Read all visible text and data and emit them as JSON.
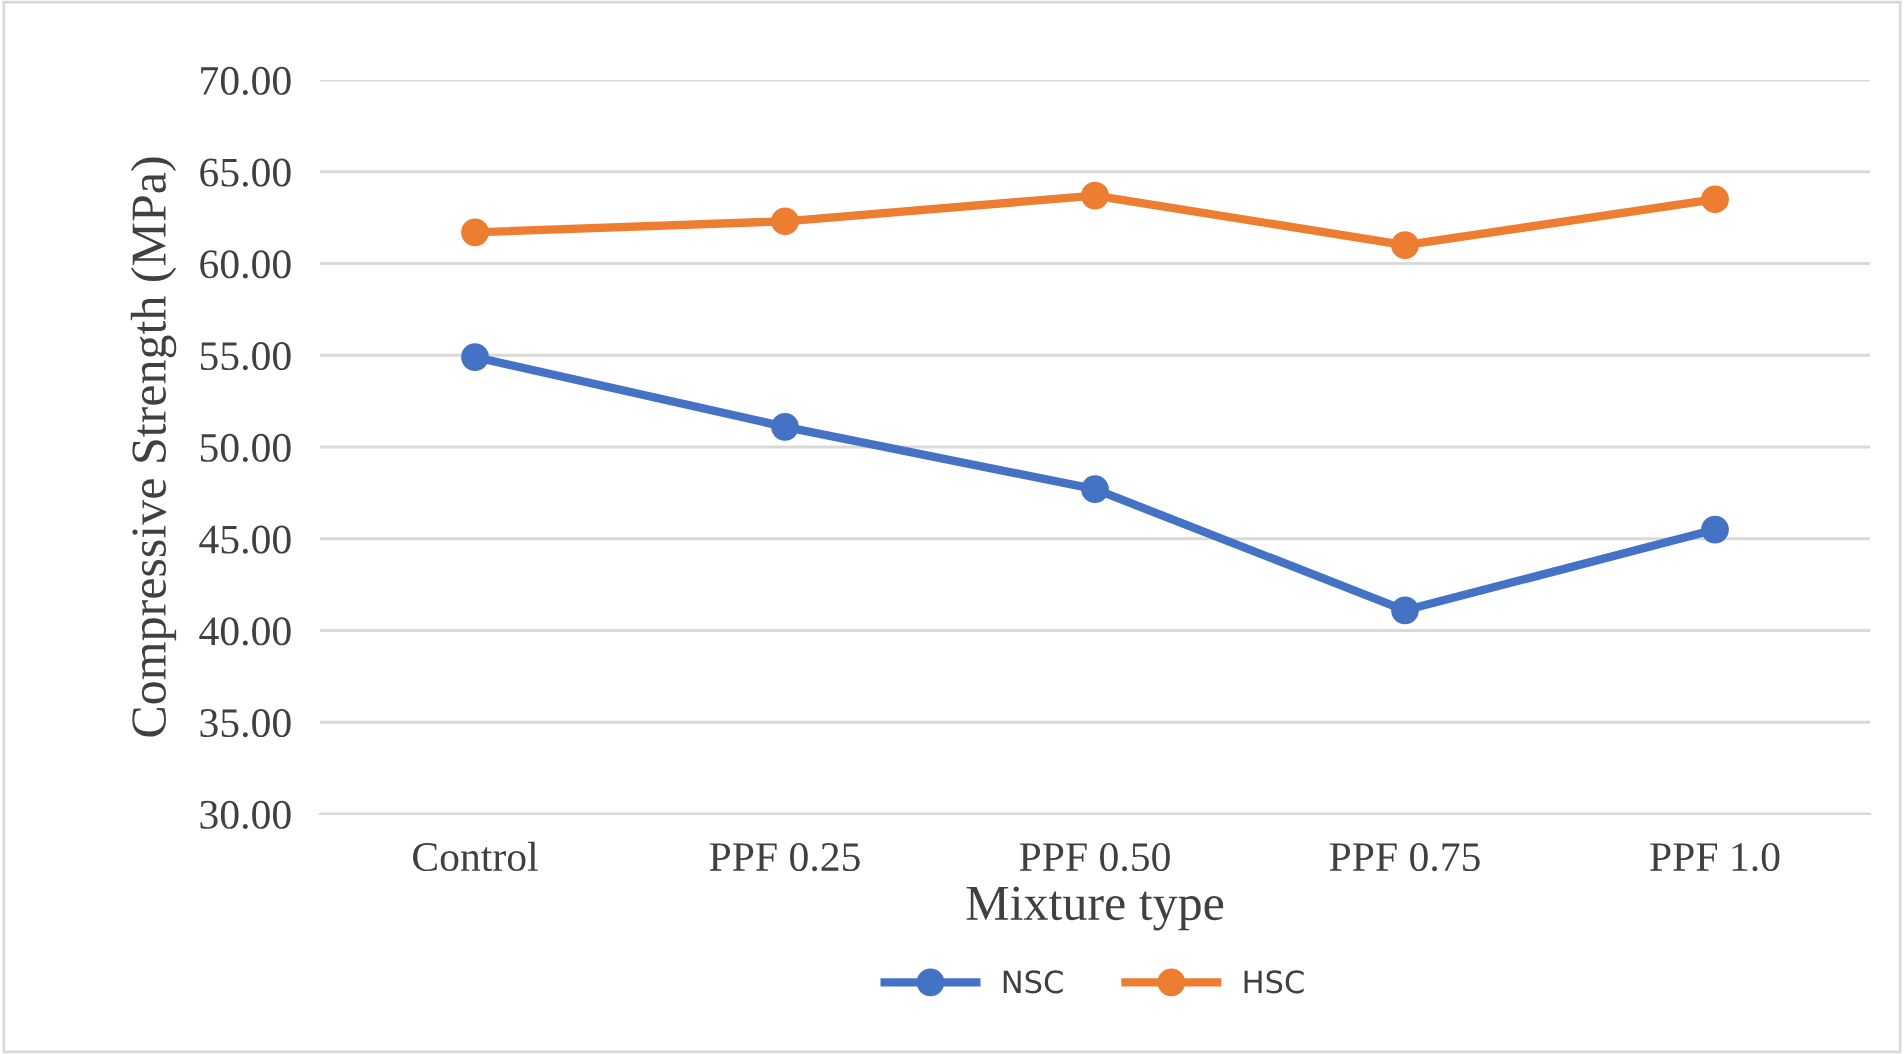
{
  "chart_data": {
    "type": "line",
    "xlabel": "Mixture type",
    "ylabel": "Compressive Strength (MPa)",
    "categories": [
      "Control",
      "PPF 0.25",
      "PPF 0.50",
      "PPF 0.75",
      "PPF 1.0"
    ],
    "series": [
      {
        "name": "NSC",
        "color": "#4472c4",
        "values": [
          54.9,
          51.1,
          47.7,
          41.1,
          45.5
        ]
      },
      {
        "name": "HSC",
        "color": "#ed7d31",
        "values": [
          61.7,
          62.3,
          63.7,
          61.0,
          63.5
        ]
      }
    ],
    "ylim": [
      30,
      70
    ],
    "yticks": [
      {
        "value": 30,
        "label": "30.00"
      },
      {
        "value": 35,
        "label": "35.00"
      },
      {
        "value": 40,
        "label": "40.00"
      },
      {
        "value": 45,
        "label": "45.00"
      },
      {
        "value": 50,
        "label": "50.00"
      },
      {
        "value": 55,
        "label": "55.00"
      },
      {
        "value": 60,
        "label": "60.00"
      },
      {
        "value": 65,
        "label": "65.00"
      },
      {
        "value": 70,
        "label": "70.00"
      }
    ],
    "grid": "y",
    "legend": "bottom",
    "marker": "circle",
    "line_style": "solid"
  }
}
